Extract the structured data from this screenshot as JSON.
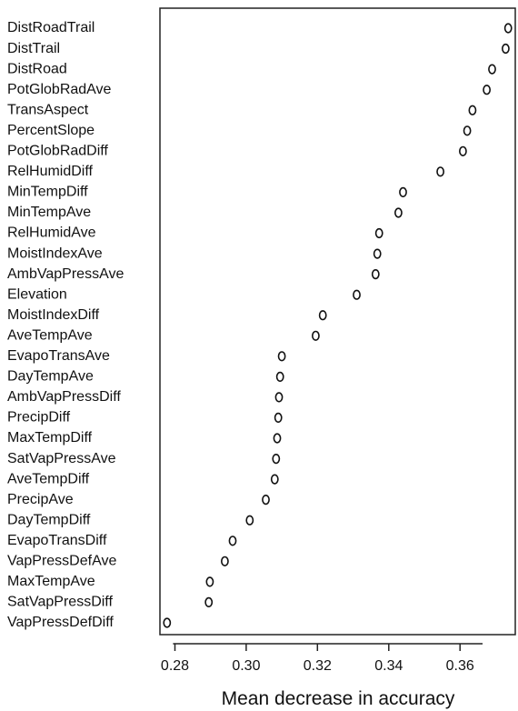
{
  "chart_data": {
    "type": "scatter",
    "title": "",
    "xlabel": "Mean decrease in accuracy",
    "ylabel": "",
    "xlim": [
      0.2758,
      0.3755
    ],
    "xticks": [
      0.28,
      0.3,
      0.32,
      0.34,
      0.36
    ],
    "tick_labels": [
      "0.28",
      "0.30",
      "0.32",
      "0.34",
      "0.36"
    ],
    "grid": false,
    "marker": "open circle",
    "colors": {
      "axis": "#222222",
      "marker": "#111111",
      "text": "#111111"
    },
    "categories": [
      "DistRoadTrail",
      "DistTrail",
      "DistRoad",
      "PotGlobRadAve",
      "TransAspect",
      "PercentSlope",
      "PotGlobRadDiff",
      "RelHumidDiff",
      "MinTempDiff",
      "MinTempAve",
      "RelHumidAve",
      "MoistIndexAve",
      "AmbVapPressAve",
      "Elevation",
      "MoistIndexDiff",
      "AveTempAve",
      "EvapoTransAve",
      "DayTempAve",
      "AmbVapPressDiff",
      "PrecipDiff",
      "MaxTempDiff",
      "SatVapPressAve",
      "AveTempDiff",
      "PrecipAve",
      "DayTempDiff",
      "EvapoTransDiff",
      "VapPressDefAve",
      "MaxTempAve",
      "SatVapPressDiff",
      "VapPressDefDiff"
    ],
    "values": [
      0.3735,
      0.3728,
      0.369,
      0.3675,
      0.3635,
      0.362,
      0.3608,
      0.3545,
      0.344,
      0.3427,
      0.3373,
      0.3368,
      0.3363,
      0.331,
      0.3215,
      0.3195,
      0.31,
      0.3095,
      0.3092,
      0.309,
      0.3087,
      0.3084,
      0.308,
      0.3055,
      0.301,
      0.2962,
      0.294,
      0.2898,
      0.2895,
      0.2778
    ]
  }
}
